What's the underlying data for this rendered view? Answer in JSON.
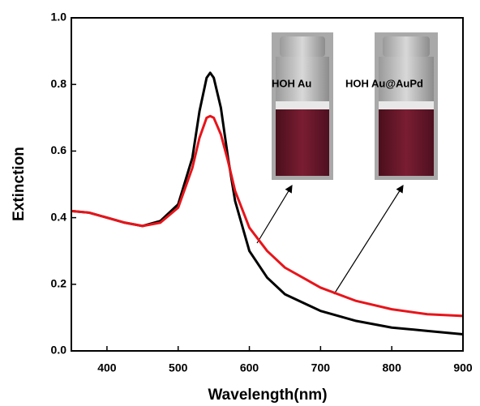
{
  "chart_data": {
    "type": "line",
    "x_label": "Wavelength(nm)",
    "y_label": "Extinction",
    "x": [
      350,
      375,
      400,
      425,
      450,
      475,
      500,
      520,
      530,
      540,
      545,
      550,
      560,
      570,
      580,
      600,
      625,
      650,
      700,
      750,
      800,
      850,
      900
    ],
    "series": [
      {
        "name": "HOH Au",
        "color": "#000000",
        "values": [
          0.42,
          0.415,
          0.4,
          0.385,
          0.375,
          0.39,
          0.44,
          0.58,
          0.72,
          0.82,
          0.835,
          0.82,
          0.73,
          0.58,
          0.45,
          0.3,
          0.22,
          0.17,
          0.12,
          0.09,
          0.07,
          0.06,
          0.05
        ]
      },
      {
        "name": "HOH Au@AuPd",
        "color": "#e8141a",
        "values": [
          0.42,
          0.415,
          0.4,
          0.385,
          0.375,
          0.385,
          0.43,
          0.55,
          0.64,
          0.7,
          0.705,
          0.7,
          0.65,
          0.57,
          0.48,
          0.37,
          0.3,
          0.25,
          0.19,
          0.15,
          0.125,
          0.11,
          0.105
        ]
      }
    ],
    "xlim": [
      350,
      900
    ],
    "xticks": [
      400,
      500,
      600,
      700,
      800,
      900
    ],
    "ylim": [
      0,
      1
    ],
    "yticks": [
      {
        "value": 0,
        "label": "0.0"
      },
      0.2,
      0.4,
      0.6,
      0.8,
      {
        "value": 1,
        "label": "1.0"
      }
    ]
  }
}
